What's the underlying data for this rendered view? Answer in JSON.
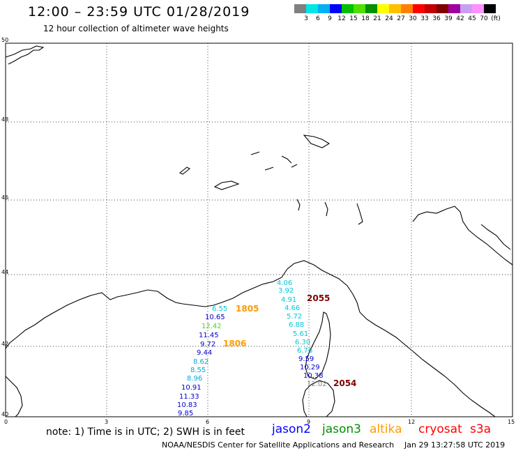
{
  "header": {
    "title": "12:00 – 23:59 UTC 01/28/2019",
    "subtitle": "12 hour collection of altimeter wave heights"
  },
  "color_scale": {
    "colors": [
      "#808080",
      "#00e5e5",
      "#00b0f0",
      "#0000ff",
      "#00c000",
      "#50e000",
      "#009000",
      "#ffff00",
      "#ffc000",
      "#ff8000",
      "#ff0000",
      "#c00000",
      "#800000",
      "#a000a0",
      "#c8a0f0",
      "#ff90ff",
      "#000000"
    ],
    "labels": [
      "3",
      "6",
      "9",
      "12",
      "15",
      "18",
      "21",
      "24",
      "27",
      "30",
      "33",
      "36",
      "39",
      "42",
      "45",
      "70",
      "(ft)"
    ]
  },
  "axes": {
    "lat_labels": [
      "50",
      "48",
      "46",
      "44",
      "42",
      "40"
    ],
    "lon_labels": [
      "0",
      "3",
      "6",
      "9",
      "12",
      "15"
    ]
  },
  "track_values": {
    "west_cyan": [
      "6.55"
    ],
    "west_blue1": [
      "10.65"
    ],
    "west_green": [
      "12.42"
    ],
    "west_blue2": [
      "11.45",
      "9.72",
      "9.44"
    ],
    "west_cyan2": [
      "8.62",
      "8.55",
      "8.96"
    ],
    "west_blue3": [
      "10.91",
      "11.33",
      "10.83",
      "9.85"
    ],
    "east_cyan": [
      "4.06",
      "3.92",
      "4.91",
      "4.66",
      "5.72",
      "6.88",
      "5.61",
      "6.30",
      "6.78"
    ],
    "east_blue": [
      "9.59",
      "10.29",
      "10.38"
    ],
    "east_gray": [
      "12.02"
    ]
  },
  "pass_times": {
    "t1805": "1805",
    "t1806": "1806",
    "t2055": "2055",
    "t2054": "2054"
  },
  "note": "note:  1) Time is in UTC;  2) SWH is in feet",
  "legend": {
    "jason2": "jason2",
    "jason3": "jason3",
    "altika": "altika",
    "cryosat": "cryosat",
    "s3a": "s3a"
  },
  "footer": {
    "org": "NOAA/NESDIS Center for Satellite Applications and Research",
    "timestamp": "Jan 29 13:27:58 UTC 2019"
  }
}
